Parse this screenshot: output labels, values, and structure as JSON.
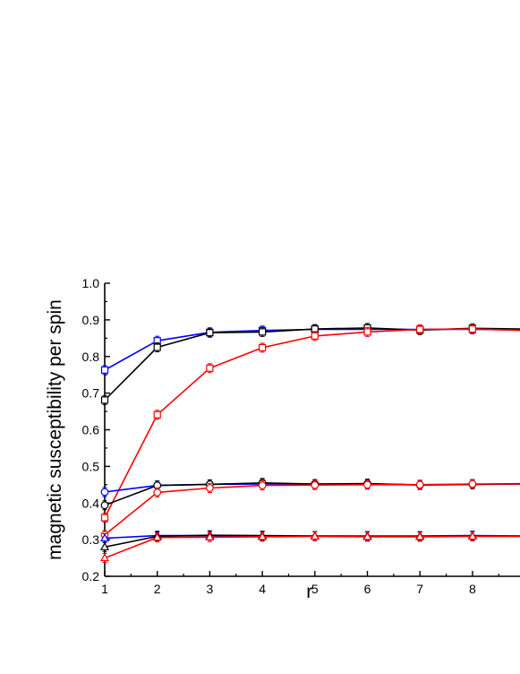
{
  "chart_data": {
    "type": "line",
    "title": "",
    "xlabel": "r",
    "ylabel": "magnetic susceptibility per spin",
    "xlim": [
      1,
      9
    ],
    "ylim": [
      0.2,
      1.0
    ],
    "xticks": [
      1,
      2,
      3,
      4,
      5,
      6,
      7,
      8
    ],
    "yticks": [
      0.2,
      0.3,
      0.4,
      0.5,
      0.6,
      0.7,
      0.8,
      0.9,
      1.0
    ],
    "grid": false,
    "legend": "none",
    "x": [
      1,
      2,
      3,
      4,
      5,
      6,
      7,
      8,
      9
    ],
    "series": [
      {
        "color": "#0000ff",
        "marker": "square",
        "values": [
          0.763,
          0.843,
          0.866,
          0.871,
          0.874,
          0.874,
          0.874,
          0.874,
          0.872
        ]
      },
      {
        "color": "#000000",
        "marker": "square",
        "values": [
          0.681,
          0.825,
          0.865,
          0.867,
          0.875,
          0.878,
          0.872,
          0.877,
          0.875
        ]
      },
      {
        "color": "#ff0000",
        "marker": "square",
        "values": [
          0.36,
          0.641,
          0.768,
          0.824,
          0.856,
          0.867,
          0.874,
          0.875,
          0.871
        ]
      },
      {
        "color": "#0000ff",
        "marker": "circle",
        "values": [
          0.43,
          0.448,
          0.451,
          0.452,
          0.452,
          0.452,
          0.45,
          0.451,
          0.452
        ]
      },
      {
        "color": "#000000",
        "marker": "circle",
        "values": [
          0.394,
          0.448,
          0.451,
          0.455,
          0.452,
          0.453,
          0.449,
          0.451,
          0.453
        ]
      },
      {
        "color": "#ff0000",
        "marker": "circle",
        "values": [
          0.313,
          0.429,
          0.441,
          0.448,
          0.449,
          0.45,
          0.45,
          0.452,
          0.452
        ]
      },
      {
        "color": "#0000ff",
        "marker": "triangle",
        "values": [
          0.304,
          0.311,
          0.311,
          0.31,
          0.31,
          0.31,
          0.31,
          0.311,
          0.31
        ]
      },
      {
        "color": "#000000",
        "marker": "triangle",
        "values": [
          0.28,
          0.309,
          0.312,
          0.311,
          0.31,
          0.309,
          0.309,
          0.31,
          0.309
        ]
      },
      {
        "color": "#ff0000",
        "marker": "triangle",
        "values": [
          0.25,
          0.306,
          0.307,
          0.308,
          0.309,
          0.308,
          0.308,
          0.309,
          0.309
        ]
      }
    ]
  }
}
